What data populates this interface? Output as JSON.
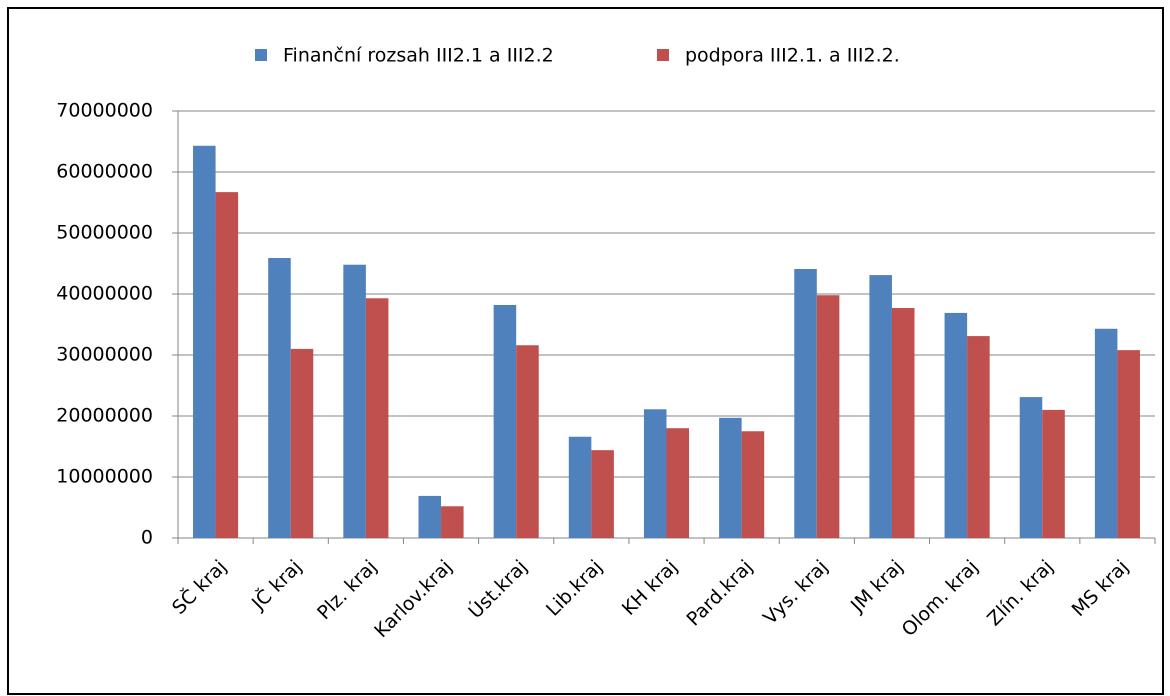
{
  "chart_data": {
    "type": "bar",
    "categories": [
      "SČ kraj",
      "JČ kraj",
      "Plz. kraj",
      "Karlov.kraj",
      "Úst.kraj",
      "Lib.kraj",
      "KH kraj",
      "Pard.kraj",
      "Vys. kraj",
      "JM kraj",
      "Olom. kraj",
      "Zlín. kraj",
      "MS kraj"
    ],
    "series": [
      {
        "name": "Finanční rozsah III2.1 a III2.2",
        "color": "#4f81bd",
        "values": [
          64300000,
          45900000,
          44800000,
          6900000,
          38200000,
          16600000,
          21100000,
          19700000,
          44100000,
          43100000,
          36900000,
          23100000,
          34300000
        ]
      },
      {
        "name": "podpora III2.1. a III2.2.",
        "color": "#c0504d",
        "values": [
          56700000,
          31000000,
          39300000,
          5200000,
          31600000,
          14400000,
          18000000,
          17500000,
          39800000,
          37700000,
          33100000,
          21000000,
          30800000
        ]
      }
    ],
    "ylim": [
      0,
      70000000
    ],
    "yticks": [
      0,
      10000000,
      20000000,
      30000000,
      40000000,
      50000000,
      60000000,
      70000000
    ],
    "grid": true,
    "legend": "top"
  }
}
